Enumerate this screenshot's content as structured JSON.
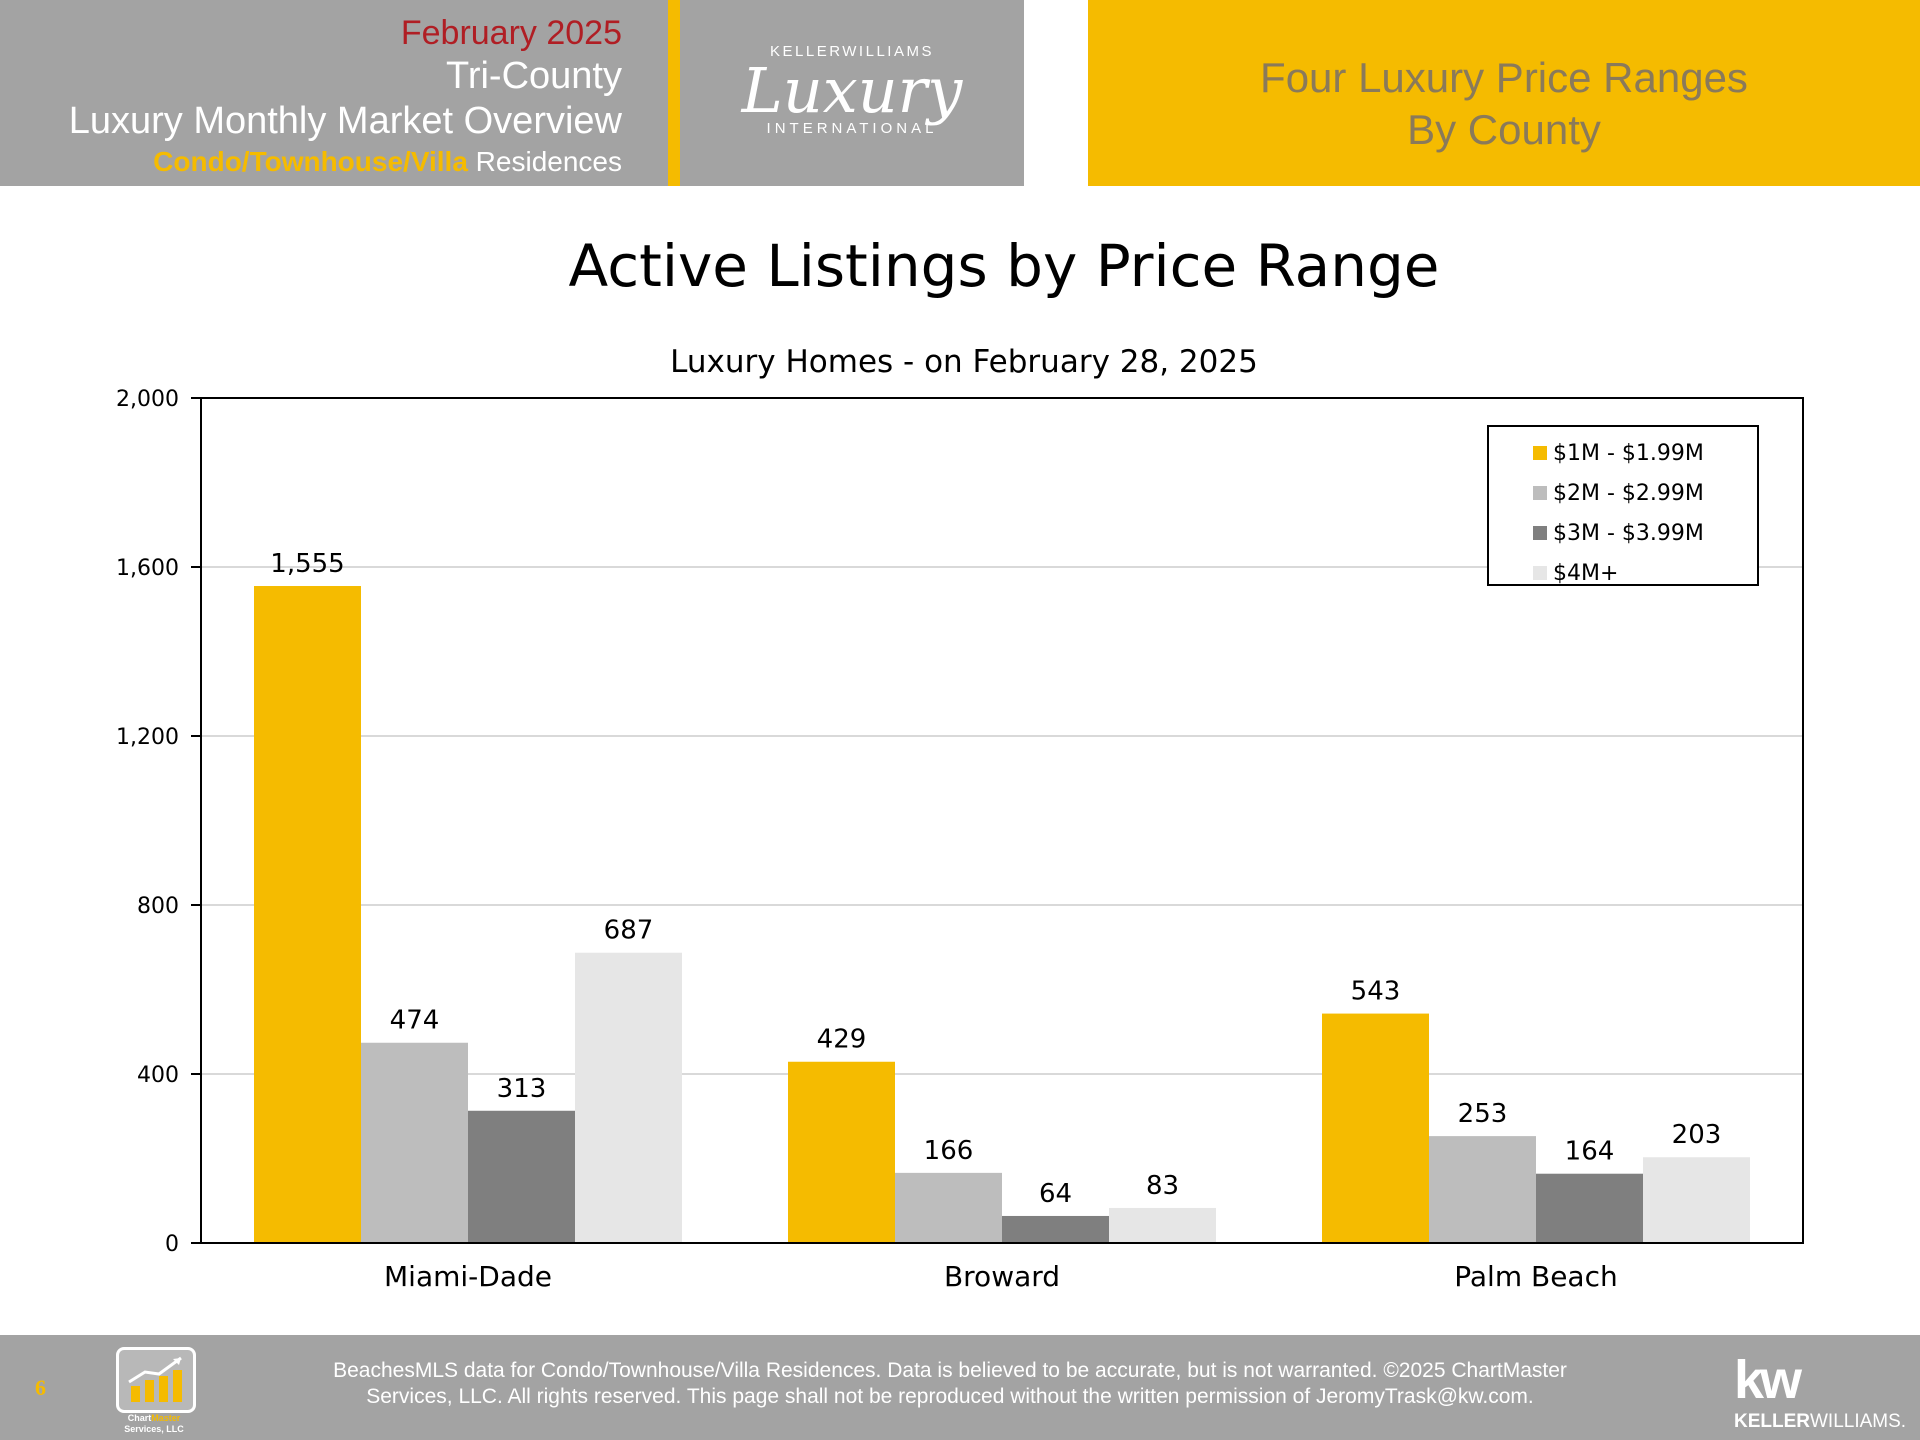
{
  "header": {
    "month": "February 2025",
    "region": "Tri-County",
    "report": "Luxury Monthly Market Overview",
    "segment_highlight": "Condo/Townhouse/Villa",
    "segment_rest": " Residences",
    "logo_top": "KELLERWILLIAMS",
    "logo_script": "Luxury",
    "logo_bottom": "INTERNATIONAL",
    "section_line1": "Four Luxury Price Ranges",
    "section_line2": "By County"
  },
  "chart_data": {
    "type": "bar",
    "title": "Active Listings by Price Range",
    "subtitle": "Luxury Homes - on February 28, 2025",
    "categories": [
      "Miami-Dade",
      "Broward",
      "Palm Beach"
    ],
    "series": [
      {
        "name": "$1M - $1.99M",
        "color": "#f5bb00",
        "values": [
          1555,
          429,
          543
        ]
      },
      {
        "name": "$2M - $2.99M",
        "color": "#bdbdbd",
        "values": [
          474,
          166,
          253
        ]
      },
      {
        "name": "$3M - $3.99M",
        "color": "#7f7f7f",
        "values": [
          313,
          64,
          164
        ]
      },
      {
        "name": "$4M+",
        "color": "#e6e6e6",
        "values": [
          687,
          83,
          203
        ]
      }
    ],
    "ylim": [
      0,
      2000
    ],
    "yticks": [
      0,
      400,
      800,
      1200,
      1600,
      2000
    ],
    "ytick_labels": [
      "0",
      "400",
      "800",
      "1,200",
      "1,600",
      "2,000"
    ],
    "value_labels": [
      [
        "1,555",
        "429",
        "543"
      ],
      [
        "474",
        "166",
        "253"
      ],
      [
        "313",
        "64",
        "164"
      ],
      [
        "687",
        "83",
        "203"
      ]
    ],
    "grid": true,
    "legend_position": "top-right",
    "xlabel": "",
    "ylabel": ""
  },
  "footer": {
    "page_number": "6",
    "chartmaster_caption_a": "Chart",
    "chartmaster_caption_b": "Master",
    "chartmaster_caption_c": "Services, LLC",
    "note_line1": "BeachesMLS data for Condo/Townhouse/Villa Residences.  Data is believed to be accurate, but is not warranted.   ©2025  ChartMaster",
    "note_line2": "Services, LLC.  All rights reserved. This page shall not be reproduced without the written permission of JeromyTrask@kw.com.",
    "kw_mark": "kw",
    "kw_text_bold": "KELLER",
    "kw_text_rest": "WILLIAMS."
  }
}
